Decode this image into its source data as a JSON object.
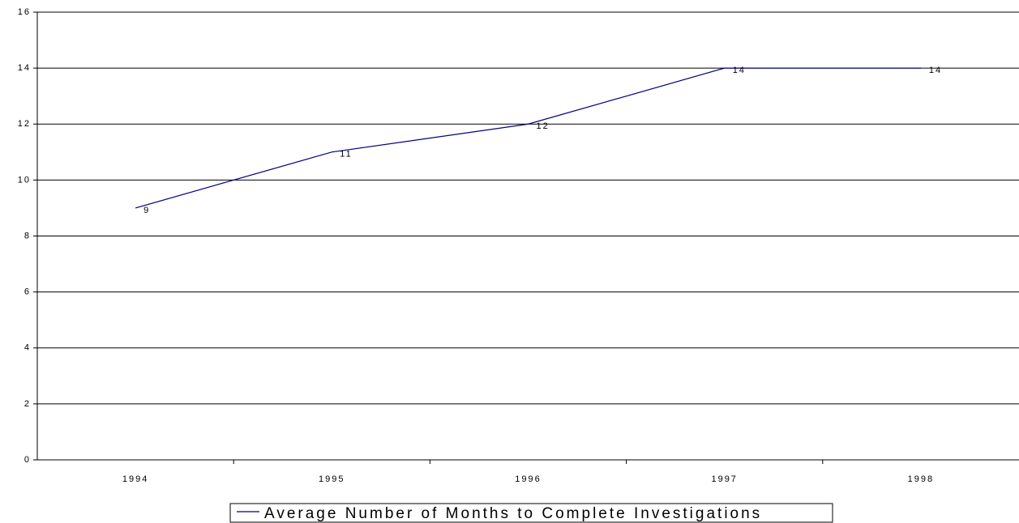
{
  "chart_data": {
    "type": "line",
    "categories": [
      "1994",
      "1995",
      "1996",
      "1997",
      "1998"
    ],
    "series": [
      {
        "name": "Average Number of Months to Complete Investigations",
        "color": "#000080",
        "values": [
          9,
          11,
          12,
          14,
          14
        ]
      }
    ],
    "ylim": [
      0,
      16
    ],
    "yticks": [
      0,
      2,
      4,
      6,
      8,
      10,
      12,
      14,
      16
    ],
    "grid": true,
    "legend": "bottom"
  }
}
